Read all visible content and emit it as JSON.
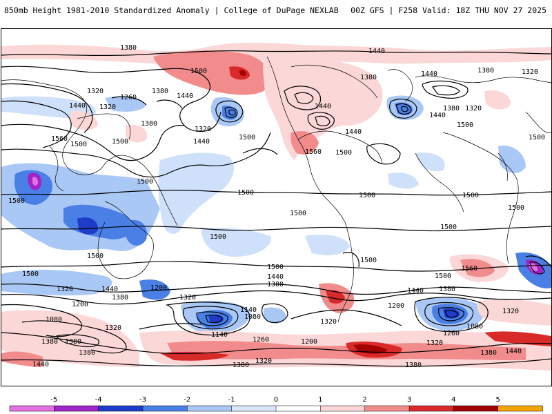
{
  "header": {
    "title_left": "850mb Height 1981-2010 Standardized Anomaly | College of DuPage NEXLAB",
    "title_right": "00Z GFS | F258 Valid: 18Z THU NOV 27 2025"
  },
  "contour_labels": [
    "1380",
    "1440",
    "1500",
    "1320",
    "1260",
    "1200",
    "1140",
    "1080",
    "1560"
  ],
  "colorbar": {
    "labels": [
      "-5",
      "-4",
      "-3",
      "-2",
      "-1",
      "0",
      "1",
      "2",
      "3",
      "4",
      "5"
    ],
    "colors": [
      "#e36fe0",
      "#a024c8",
      "#1e3cc8",
      "#4a7fe6",
      "#a9c8f5",
      "#d9e6fa",
      "#ffffff",
      "#fbd7d7",
      "#f28c8c",
      "#d92a2a",
      "#a50000",
      "#f5a300"
    ]
  },
  "colors": {
    "anomaly_strong_neg": "#2b4fd6",
    "anomaly_neg": "#8db4f0",
    "anomaly_weak_neg": "#cfe0fa",
    "anomaly_weak_pos": "#f9d2d2",
    "anomaly_pos": "#ef8a8a",
    "anomaly_strong_pos": "#d01818",
    "contour": "#000000"
  }
}
